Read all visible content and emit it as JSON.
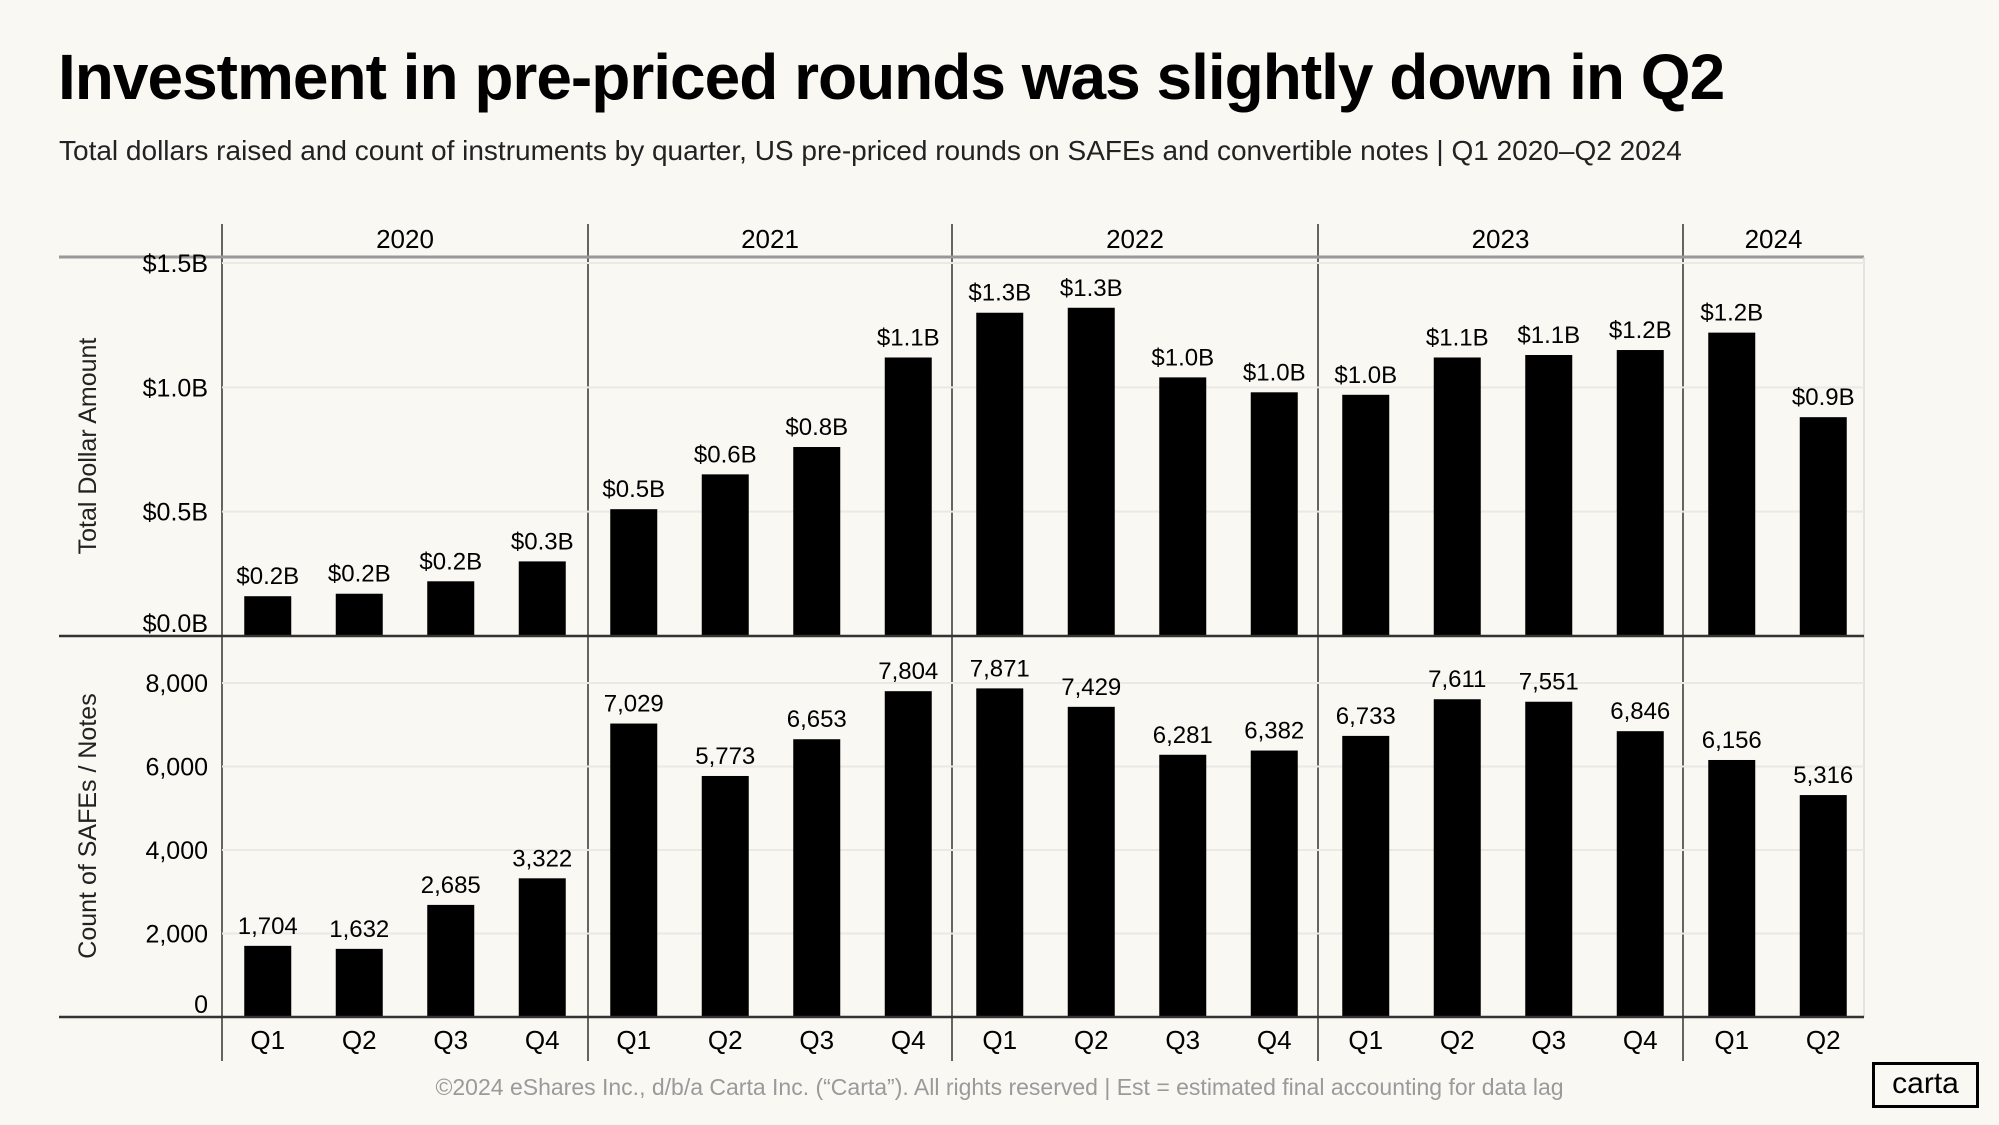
{
  "title": "Investment in pre-priced rounds was slightly down in Q2",
  "subtitle": "Total dollars raised and count of instruments by quarter, US pre-priced rounds on SAFEs and convertible notes | Q1 2020–Q2 2024",
  "footer": "©2024 eShares Inc., d/b/a Carta Inc. (“Carta”). All rights reserved  |  Est = estimated final accounting for data lag",
  "logo": "carta",
  "colors": {
    "bar": "#000000",
    "background": "#faf8f3",
    "grid": "#ebe9e4"
  },
  "chart_data": [
    {
      "type": "bar",
      "ylabel": "Total Dollar Amount",
      "ylim": [
        0,
        1.5
      ],
      "yticks": [
        "$0.0B",
        "$0.5B",
        "$1.0B",
        "$1.5B"
      ],
      "grid": true,
      "years": [
        "2020",
        "2021",
        "2022",
        "2023",
        "2024"
      ],
      "categories": [
        "Q1",
        "Q2",
        "Q3",
        "Q4",
        "Q1",
        "Q2",
        "Q3",
        "Q4",
        "Q1",
        "Q2",
        "Q3",
        "Q4",
        "Q1",
        "Q2",
        "Q3",
        "Q4",
        "Q1",
        "Q2"
      ],
      "values": [
        0.16,
        0.17,
        0.22,
        0.3,
        0.51,
        0.65,
        0.76,
        1.12,
        1.3,
        1.32,
        1.04,
        0.98,
        0.97,
        1.12,
        1.13,
        1.15,
        1.22,
        0.88
      ],
      "labels": [
        "$0.2B",
        "$0.2B",
        "$0.2B",
        "$0.3B",
        "$0.5B",
        "$0.6B",
        "$0.8B",
        "$1.1B",
        "$1.3B",
        "$1.3B",
        "$1.0B",
        "$1.0B",
        "$1.0B",
        "$1.1B",
        "$1.1B",
        "$1.2B",
        "$1.2B",
        "$0.9B"
      ]
    },
    {
      "type": "bar",
      "ylabel": "Count of SAFEs / Notes",
      "ylim": [
        0,
        8000
      ],
      "yticks": [
        "0",
        "2,000",
        "4,000",
        "6,000",
        "8,000"
      ],
      "grid": true,
      "categories": [
        "Q1",
        "Q2",
        "Q3",
        "Q4",
        "Q1",
        "Q2",
        "Q3",
        "Q4",
        "Q1",
        "Q2",
        "Q3",
        "Q4",
        "Q1",
        "Q2",
        "Q3",
        "Q4",
        "Q1",
        "Q2"
      ],
      "values": [
        1704,
        1632,
        2685,
        3322,
        7029,
        5773,
        6653,
        7804,
        7871,
        7429,
        6281,
        6382,
        6733,
        7611,
        7551,
        6846,
        6156,
        5316
      ],
      "labels": [
        "1,704",
        "1,632",
        "2,685",
        "3,322",
        "7,029",
        "5,773",
        "6,653",
        "7,804",
        "7,871",
        "7,429",
        "6,281",
        "6,382",
        "6,733",
        "7,611",
        "7,551",
        "6,846",
        "6,156",
        "5,316"
      ]
    }
  ]
}
